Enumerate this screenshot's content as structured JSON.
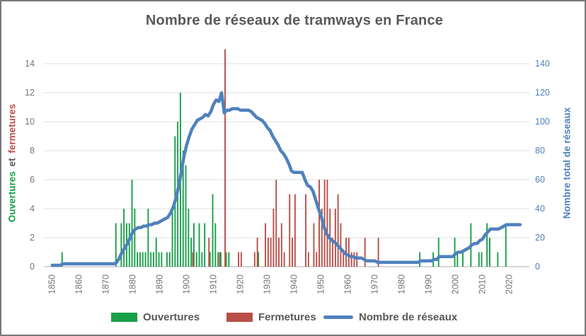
{
  "title": "Nombre de réseaux de tramways en France",
  "axes": {
    "left": {
      "title_part1": "Ouvertures",
      "title_part2": "et",
      "title_part3": "fermetures",
      "ticks": [
        0,
        2,
        4,
        6,
        8,
        10,
        12,
        14
      ],
      "range": [
        0,
        14
      ]
    },
    "right": {
      "title": "Nombre total de réseaux",
      "ticks": [
        0,
        20,
        40,
        60,
        80,
        100,
        120,
        140
      ],
      "range": [
        0,
        140
      ]
    },
    "x": {
      "ticks": [
        1850,
        1860,
        1870,
        1880,
        1890,
        1900,
        1910,
        1920,
        1930,
        1940,
        1950,
        1960,
        1970,
        1980,
        1990,
        2000,
        2010,
        2020
      ]
    }
  },
  "legend": {
    "ouvertures": "Ouvertures",
    "fermetures": "Fermetures",
    "reseaux": "Nombre de réseaux"
  },
  "colors": {
    "green": "#18A048",
    "red": "#B94F47",
    "blue": "#4F81BD",
    "title_text": "#595959",
    "tick_text": "#757575",
    "gridline": "#E4E4E4",
    "axis_line": "#C9C9C9",
    "border": "#7A7A7A"
  },
  "chart_data": {
    "type": "bar",
    "title": "Nombre de réseaux de tramways en France",
    "xlabel": "",
    "ylabel_left": "Ouvertures et fermetures",
    "ylabel_right": "Nombre total de réseaux",
    "x_range": [
      1848,
      2026
    ],
    "left_ylim": [
      0,
      14
    ],
    "right_ylim": [
      0,
      140
    ],
    "grid": true,
    "legend_position": "bottom",
    "series": [
      {
        "name": "Ouvertures",
        "type": "bar",
        "axis": "left",
        "color_key": "green",
        "points": {
          "1854": 1,
          "1874": 3,
          "1876": 3,
          "1877": 4,
          "1878": 3,
          "1879": 3,
          "1880": 6,
          "1881": 4,
          "1882": 1,
          "1883": 1,
          "1884": 1,
          "1885": 1,
          "1886": 4,
          "1887": 1,
          "1888": 1,
          "1889": 2,
          "1890": 1,
          "1891": 1,
          "1893": 1,
          "1894": 1,
          "1895": 4,
          "1896": 9,
          "1897": 10,
          "1898": 12,
          "1899": 8,
          "1900": 7,
          "1901": 4,
          "1902": 2,
          "1903": 3,
          "1904": 1,
          "1905": 3,
          "1906": 1,
          "1907": 3,
          "1909": 1,
          "1910": 5,
          "1911": 3,
          "1912": 1,
          "1913": 1,
          "1915": 1,
          "1916": 1,
          "1927": 1,
          "1987": 1,
          "1992": 1,
          "1994": 2,
          "2000": 2,
          "2001": 1,
          "2003": 1,
          "2006": 3,
          "2009": 1,
          "2010": 1,
          "2012": 3,
          "2013": 2,
          "2016": 1,
          "2019": 3
        }
      },
      {
        "name": "Fermetures",
        "type": "bar",
        "axis": "left",
        "color_key": "red",
        "points": {
          "1902": 1,
          "1908": 2,
          "1912": 1,
          "1914": 15,
          "1919": 1,
          "1920": 1,
          "1925": 1,
          "1926": 2,
          "1929": 3,
          "1930": 2,
          "1931": 2,
          "1932": 4,
          "1933": 6,
          "1934": 2,
          "1935": 3,
          "1936": 1,
          "1938": 5,
          "1939": 2,
          "1940": 5,
          "1944": 5,
          "1945": 1,
          "1947": 3,
          "1948": 1,
          "1949": 6,
          "1950": 4,
          "1951": 6,
          "1952": 6,
          "1953": 4,
          "1954": 2,
          "1955": 4,
          "1956": 5,
          "1957": 3,
          "1958": 1,
          "1959": 2,
          "1960": 2,
          "1961": 1,
          "1962": 1,
          "1963": 1,
          "1966": 2,
          "1971": 2
        }
      },
      {
        "name": "Nombre de réseaux",
        "type": "line",
        "axis": "right",
        "color_key": "blue",
        "x_start": 1850,
        "values": [
          1,
          1,
          1,
          1,
          2,
          2,
          2,
          2,
          2,
          2,
          2,
          2,
          2,
          2,
          2,
          2,
          2,
          2,
          2,
          2,
          2,
          2,
          2,
          2,
          3,
          6,
          10,
          13,
          16,
          20,
          24,
          26,
          27,
          27,
          28,
          28,
          29,
          29,
          30,
          30,
          31,
          32,
          33,
          34,
          37,
          41,
          47,
          55,
          65,
          76,
          84,
          90,
          95,
          98,
          101,
          102,
          103,
          105,
          104,
          107,
          112,
          115,
          114,
          120,
          106,
          108,
          108,
          109,
          109,
          109,
          108,
          108,
          108,
          108,
          107,
          105,
          103,
          102,
          101,
          99,
          96,
          94,
          90,
          87,
          84,
          80,
          78,
          75,
          71,
          66,
          65,
          65,
          65,
          65,
          60,
          56,
          55,
          52,
          46,
          40,
          35,
          28,
          23,
          20,
          18,
          17,
          15,
          13,
          11,
          9,
          8,
          7,
          7,
          6,
          6,
          6,
          5,
          4,
          4,
          4,
          4,
          3,
          3,
          3,
          3,
          3,
          3,
          3,
          3,
          3,
          3,
          3,
          3,
          3,
          3,
          3,
          3,
          4,
          4,
          4,
          4,
          4,
          5,
          5,
          7,
          7,
          7,
          7,
          7,
          7,
          9,
          10,
          10,
          11,
          12,
          13,
          15,
          16,
          16,
          18,
          19,
          22,
          24,
          26,
          26,
          26,
          26,
          27,
          28,
          29,
          29,
          29,
          29,
          29,
          29
        ]
      }
    ]
  }
}
